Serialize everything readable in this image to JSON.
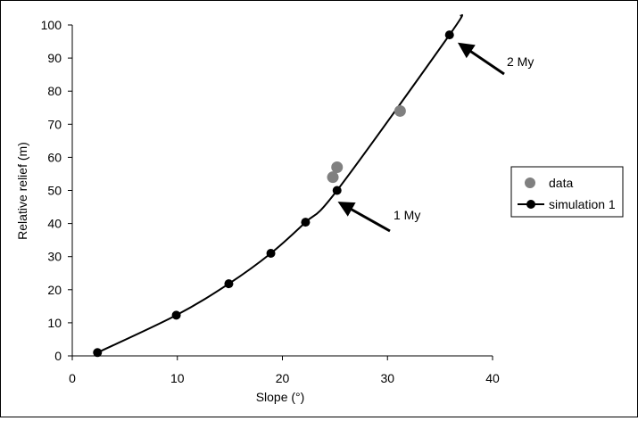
{
  "chart_data": {
    "type": "scatter",
    "title": "",
    "xlabel": "Slope (°)",
    "ylabel": "Relative relief (m)",
    "xlim": [
      0,
      40
    ],
    "ylim": [
      0,
      100
    ],
    "x_ticks": [
      0,
      10,
      20,
      30,
      40
    ],
    "y_ticks": [
      0,
      10,
      20,
      30,
      40,
      50,
      60,
      70,
      80,
      90,
      100
    ],
    "grid": false,
    "legend_position": "right",
    "series": [
      {
        "name": "data",
        "kind": "markers",
        "color": "#808080",
        "points": [
          {
            "x": 24.8,
            "y": 54
          },
          {
            "x": 25.2,
            "y": 57
          },
          {
            "x": 31.2,
            "y": 74
          }
        ]
      },
      {
        "name": "simulation 1",
        "kind": "line-markers",
        "color": "#000000",
        "points": [
          {
            "x": 2.4,
            "y": 1
          },
          {
            "x": 9.9,
            "y": 12.3
          },
          {
            "x": 14.9,
            "y": 21.8
          },
          {
            "x": 18.9,
            "y": 31
          },
          {
            "x": 22.2,
            "y": 40.4
          },
          {
            "x": 25.2,
            "y": 50
          },
          {
            "x": 35.9,
            "y": 97
          }
        ],
        "line_extends_to": {
          "x": 37,
          "y": 103
        }
      }
    ],
    "annotations": [
      {
        "text": "1 My",
        "target": {
          "x": 25.6,
          "y": 46
        }
      },
      {
        "text": "2 My",
        "target": {
          "x": 37,
          "y": 94
        }
      }
    ]
  }
}
